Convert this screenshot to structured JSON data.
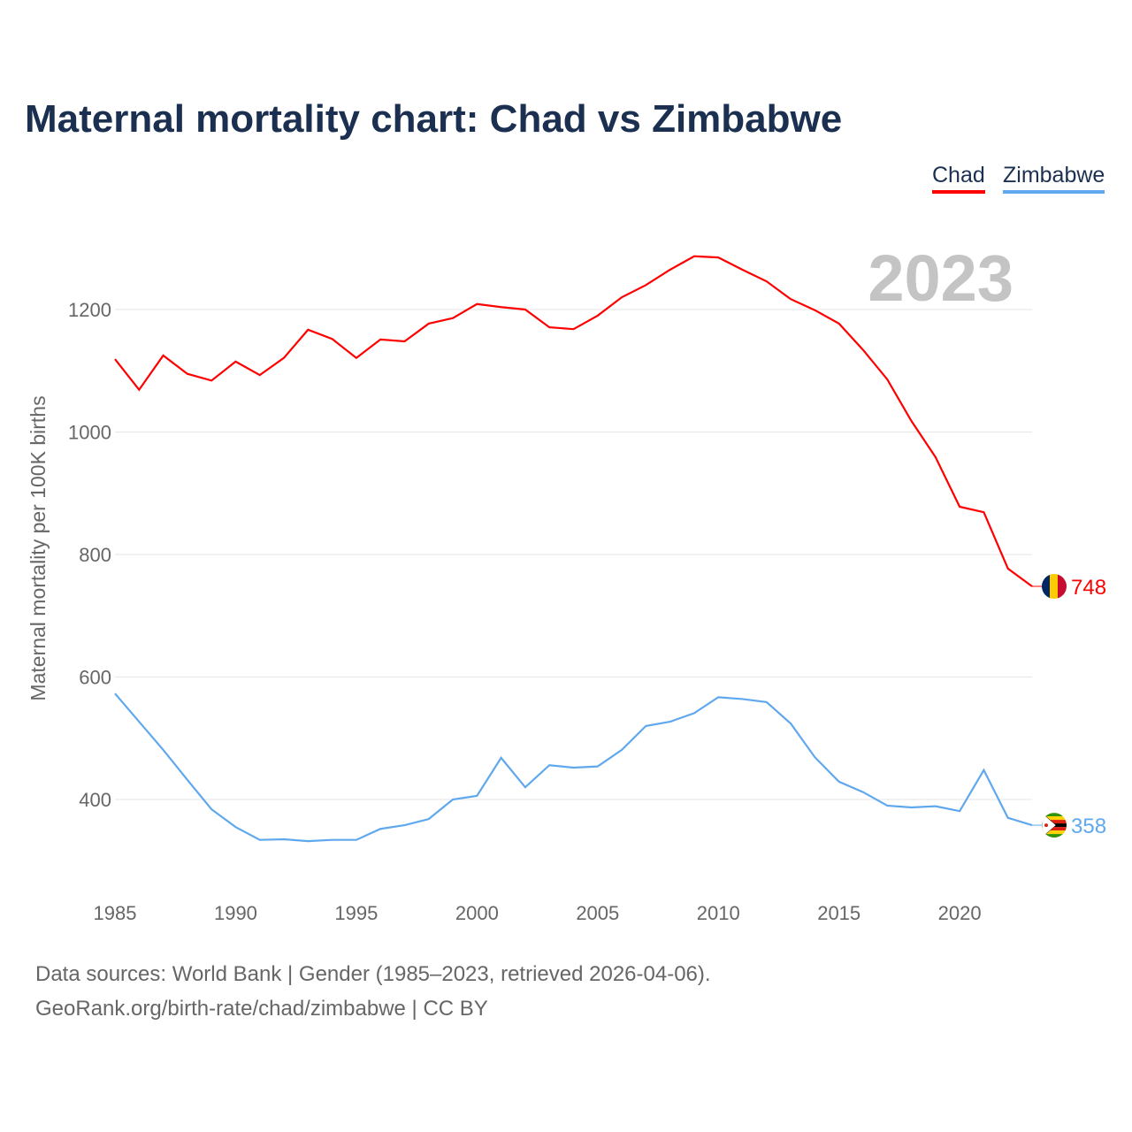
{
  "title": "Maternal mortality chart: Chad vs Zimbabwe",
  "year_label": "2023",
  "legend": [
    {
      "label": "Chad",
      "color": "#ff0000"
    },
    {
      "label": "Zimbabwe",
      "color": "#60a8ee"
    }
  ],
  "footer": {
    "line1": "Data sources: World Bank | Gender (1985–2023, retrieved 2026-04-06).",
    "line2": "GeoRank.org/birth-rate/chad/zimbabwe | CC BY"
  },
  "chart_data": {
    "type": "line",
    "title": "Maternal mortality chart: Chad vs Zimbabwe",
    "xlabel": "",
    "ylabel": "Maternal mortality per 100K births",
    "x": [
      1985,
      1986,
      1987,
      1988,
      1989,
      1990,
      1991,
      1992,
      1993,
      1994,
      1995,
      1996,
      1997,
      1998,
      1999,
      2000,
      2001,
      2002,
      2003,
      2004,
      2005,
      2006,
      2007,
      2008,
      2009,
      2010,
      2011,
      2012,
      2013,
      2014,
      2015,
      2016,
      2017,
      2018,
      2019,
      2020,
      2021,
      2022,
      2023
    ],
    "xticks": [
      1985,
      1990,
      1995,
      2000,
      2005,
      2010,
      2015,
      2020
    ],
    "yticks": [
      400,
      600,
      800,
      1000,
      1200
    ],
    "xlim": [
      1985,
      2023
    ],
    "ylim": [
      255,
      1350
    ],
    "grid": true,
    "series": [
      {
        "name": "Chad",
        "color": "#ff0000",
        "end_label": "748",
        "values": [
          1119,
          1069,
          1125,
          1095,
          1084,
          1115,
          1093,
          1121,
          1167,
          1152,
          1121,
          1151,
          1148,
          1177,
          1186,
          1209,
          1204,
          1200,
          1171,
          1168,
          1190,
          1220,
          1240,
          1265,
          1287,
          1285,
          1265,
          1246,
          1217,
          1199,
          1177,
          1134,
          1086,
          1018,
          959,
          878,
          869,
          777,
          748
        ]
      },
      {
        "name": "Zimbabwe",
        "color": "#60a8ee",
        "end_label": "358",
        "values": [
          573,
          527,
          481,
          432,
          384,
          355,
          334,
          335,
          332,
          334,
          334,
          352,
          358,
          368,
          400,
          406,
          468,
          420,
          456,
          452,
          454,
          481,
          520,
          527,
          541,
          567,
          564,
          559,
          524,
          469,
          429,
          412,
          390,
          387,
          389,
          381,
          448,
          370,
          358
        ]
      }
    ]
  }
}
